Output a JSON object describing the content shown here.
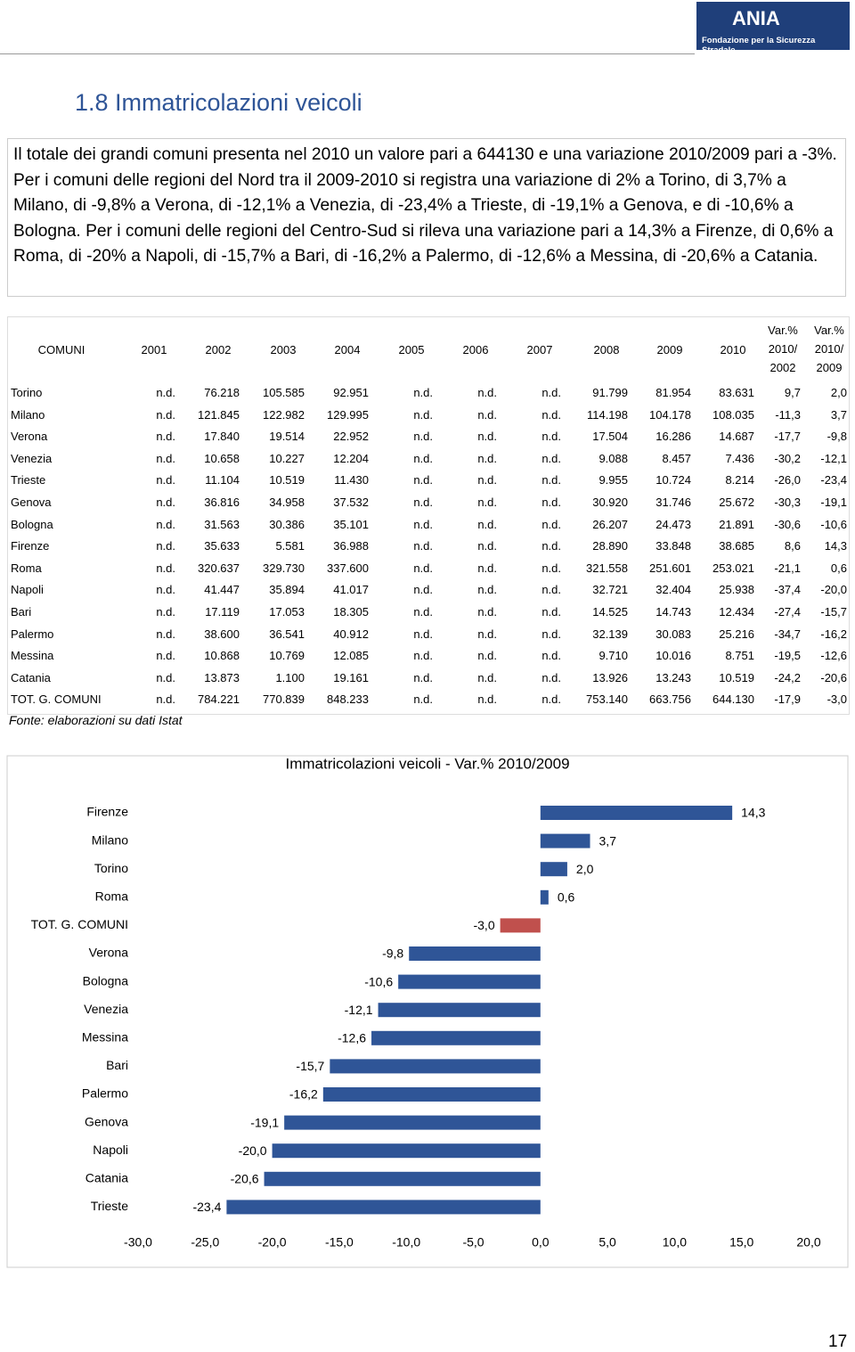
{
  "header": {
    "logo": "ANIA",
    "logo_subtitle": "Fondazione per la Sicurezza Stradale"
  },
  "title": "1.8 Immatricolazioni veicoli",
  "paragraph": "Il totale dei grandi comuni presenta nel 2010 un valore pari a 644130 e una variazione 2010/2009 pari a -3%. Per i comuni delle regioni del Nord tra il 2009-2010 si registra una variazione di 2% a Torino, di 3,7% a Milano, di -9,8% a Verona, di -12,1% a Venezia, di -23,4% a Trieste, di -19,1% a Genova, e di -10,6% a Bologna. Per i comuni delle regioni del Centro-Sud si rileva una variazione pari a 14,3% a Firenze, di 0,6% a Roma, di -20% a Napoli, di -15,7% a Bari, di -16,2% a Palermo, di -12,6% a Messina, di -20,6% a Catania.",
  "table": {
    "header": [
      [
        "COMUNI"
      ],
      [
        "2001"
      ],
      [
        "2002"
      ],
      [
        "2003"
      ],
      [
        "2004"
      ],
      [
        "2005"
      ],
      [
        "2006"
      ],
      [
        "2007"
      ],
      [
        "2008"
      ],
      [
        "2009"
      ],
      [
        "2010"
      ],
      [
        "Var.%",
        "2010/",
        "2002"
      ],
      [
        "Var.%",
        "2010/",
        "2009"
      ]
    ],
    "rows": [
      [
        "Torino",
        "n.d.",
        "76.218",
        "105.585",
        "92.951",
        "n.d.",
        "n.d.",
        "n.d.",
        "91.799",
        "81.954",
        "83.631",
        "9,7",
        "2,0"
      ],
      [
        "Milano",
        "n.d.",
        "121.845",
        "122.982",
        "129.995",
        "n.d.",
        "n.d.",
        "n.d.",
        "114.198",
        "104.178",
        "108.035",
        "-11,3",
        "3,7"
      ],
      [
        "Verona",
        "n.d.",
        "17.840",
        "19.514",
        "22.952",
        "n.d.",
        "n.d.",
        "n.d.",
        "17.504",
        "16.286",
        "14.687",
        "-17,7",
        "-9,8"
      ],
      [
        "Venezia",
        "n.d.",
        "10.658",
        "10.227",
        "12.204",
        "n.d.",
        "n.d.",
        "n.d.",
        "9.088",
        "8.457",
        "7.436",
        "-30,2",
        "-12,1"
      ],
      [
        "Trieste",
        "n.d.",
        "11.104",
        "10.519",
        "11.430",
        "n.d.",
        "n.d.",
        "n.d.",
        "9.955",
        "10.724",
        "8.214",
        "-26,0",
        "-23,4"
      ],
      [
        "Genova",
        "n.d.",
        "36.816",
        "34.958",
        "37.532",
        "n.d.",
        "n.d.",
        "n.d.",
        "30.920",
        "31.746",
        "25.672",
        "-30,3",
        "-19,1"
      ],
      [
        "Bologna",
        "n.d.",
        "31.563",
        "30.386",
        "35.101",
        "n.d.",
        "n.d.",
        "n.d.",
        "26.207",
        "24.473",
        "21.891",
        "-30,6",
        "-10,6"
      ],
      [
        "Firenze",
        "n.d.",
        "35.633",
        "5.581",
        "36.988",
        "n.d.",
        "n.d.",
        "n.d.",
        "28.890",
        "33.848",
        "38.685",
        "8,6",
        "14,3"
      ],
      [
        "Roma",
        "n.d.",
        "320.637",
        "329.730",
        "337.600",
        "n.d.",
        "n.d.",
        "n.d.",
        "321.558",
        "251.601",
        "253.021",
        "-21,1",
        "0,6"
      ],
      [
        "Napoli",
        "n.d.",
        "41.447",
        "35.894",
        "41.017",
        "n.d.",
        "n.d.",
        "n.d.",
        "32.721",
        "32.404",
        "25.938",
        "-37,4",
        "-20,0"
      ],
      [
        "Bari",
        "n.d.",
        "17.119",
        "17.053",
        "18.305",
        "n.d.",
        "n.d.",
        "n.d.",
        "14.525",
        "14.743",
        "12.434",
        "-27,4",
        "-15,7"
      ],
      [
        "Palermo",
        "n.d.",
        "38.600",
        "36.541",
        "40.912",
        "n.d.",
        "n.d.",
        "n.d.",
        "32.139",
        "30.083",
        "25.216",
        "-34,7",
        "-16,2"
      ],
      [
        "Messina",
        "n.d.",
        "10.868",
        "10.769",
        "12.085",
        "n.d.",
        "n.d.",
        "n.d.",
        "9.710",
        "10.016",
        "8.751",
        "-19,5",
        "-12,6"
      ],
      [
        "Catania",
        "n.d.",
        "13.873",
        "1.100",
        "19.161",
        "n.d.",
        "n.d.",
        "n.d.",
        "13.926",
        "13.243",
        "10.519",
        "-24,2",
        "-20,6"
      ],
      [
        "TOT. G. COMUNI",
        "n.d.",
        "784.221",
        "770.839",
        "848.233",
        "n.d.",
        "n.d.",
        "n.d.",
        "753.140",
        "663.756",
        "644.130",
        "-17,9",
        "-3,0"
      ]
    ],
    "source": "Fonte: elaborazioni su dati Istat"
  },
  "chart_data": {
    "type": "hbar",
    "title": "Immatricolazioni veicoli - Var.% 2010/2009",
    "categories": [
      "Firenze",
      "Milano",
      "Torino",
      "Roma",
      "TOT. G. COMUNI",
      "Verona",
      "Bologna",
      "Venezia",
      "Messina",
      "Bari",
      "Palermo",
      "Genova",
      "Napoli",
      "Catania",
      "Trieste"
    ],
    "values": [
      14.3,
      3.7,
      2.0,
      0.6,
      -3.0,
      -9.8,
      -10.6,
      -12.1,
      -12.6,
      -15.7,
      -16.2,
      -19.1,
      -20.0,
      -20.6,
      -23.4
    ],
    "value_labels": [
      "14,3",
      "3,7",
      "2,0",
      "0,6",
      "-3,0",
      "-9,8",
      "-10,6",
      "-12,1",
      "-12,6",
      "-15,7",
      "-16,2",
      "-19,1",
      "-20,0",
      "-20,6",
      "-23,4"
    ],
    "colors": [
      "#2f5597",
      "#2f5597",
      "#2f5597",
      "#2f5597",
      "#c0504d",
      "#2f5597",
      "#2f5597",
      "#2f5597",
      "#2f5597",
      "#2f5597",
      "#2f5597",
      "#2f5597",
      "#2f5597",
      "#2f5597",
      "#2f5597"
    ],
    "xlim": [
      -30,
      20
    ],
    "xticks": [
      {
        "value": -30,
        "label": "-30,0"
      },
      {
        "value": -25,
        "label": "-25,0"
      },
      {
        "value": -20,
        "label": "-20,0"
      },
      {
        "value": -15,
        "label": "-15,0"
      },
      {
        "value": -10,
        "label": "-10,0"
      },
      {
        "value": -5,
        "label": "-5,0"
      },
      {
        "value": 0,
        "label": "0,0"
      },
      {
        "value": 5,
        "label": "5,0"
      },
      {
        "value": 10,
        "label": "10,0"
      },
      {
        "value": 15,
        "label": "15,0"
      },
      {
        "value": 20,
        "label": "20,0"
      }
    ]
  },
  "page_number": "17"
}
